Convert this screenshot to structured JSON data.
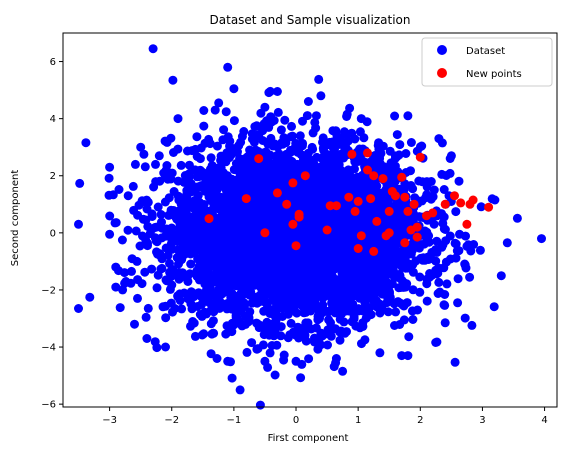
{
  "chart_data": {
    "type": "scatter",
    "title": "Dataset and Sample visualization",
    "xlabel": "First component",
    "ylabel": "Second component",
    "xlim": [
      -3.75,
      4.2
    ],
    "ylim": [
      -6.1,
      7.0
    ],
    "xticks": [
      -3,
      -2,
      -1,
      0,
      1,
      2,
      3,
      4
    ],
    "yticks": [
      -6,
      -4,
      -2,
      0,
      2,
      4,
      6
    ],
    "grid": false,
    "legend_position": "top-right",
    "series": [
      {
        "name": "Dataset",
        "color": "#0000ff",
        "distribution": "dense cloud of about 5000 points centred near (0, 0), spread roughly -3.5..4 on x and -5.5..6.5 on y",
        "points": [
          [
            -2.3,
            6.45
          ],
          [
            -1.1,
            5.8
          ],
          [
            -1.0,
            5.05
          ],
          [
            -0.3,
            4.95
          ],
          [
            0.4,
            4.8
          ],
          [
            -1.3,
            4.3
          ],
          [
            -1.9,
            4.0
          ],
          [
            1.8,
            4.1
          ],
          [
            3.95,
            -0.2
          ],
          [
            3.4,
            -0.35
          ],
          [
            3.2,
            1.15
          ],
          [
            -3.5,
            0.3
          ],
          [
            -3.5,
            -2.65
          ],
          [
            -3.0,
            2.3
          ],
          [
            -3.0,
            -0.05
          ],
          [
            -2.9,
            -1.9
          ],
          [
            -2.6,
            -3.2
          ],
          [
            -2.4,
            -3.7
          ],
          [
            -2.1,
            -4.0
          ],
          [
            -1.1,
            -4.5
          ],
          [
            -0.5,
            -4.5
          ],
          [
            0.0,
            -4.5
          ],
          [
            -0.9,
            -5.5
          ],
          [
            0.75,
            -4.85
          ],
          [
            0.65,
            -4.4
          ],
          [
            1.35,
            -4.2
          ],
          [
            1.8,
            -4.3
          ],
          [
            1.7,
            -4.3
          ],
          [
            2.4,
            -3.15
          ],
          [
            2.6,
            -2.45
          ],
          [
            2.5,
            2.7
          ],
          [
            2.3,
            3.3
          ],
          [
            1.05,
            4.0
          ],
          [
            0.2,
            4.6
          ],
          [
            -0.5,
            4.4
          ],
          [
            -0.6,
            3.4
          ],
          [
            -2.2,
            2.7
          ],
          [
            -2.7,
            1.3
          ],
          [
            -2.9,
            -1.2
          ],
          [
            -2.5,
            3.0
          ]
        ]
      },
      {
        "name": "New points",
        "color": "#ff0000",
        "points": [
          [
            -0.6,
            2.6
          ],
          [
            -0.8,
            1.2
          ],
          [
            -1.4,
            0.5
          ],
          [
            -0.5,
            0.0
          ],
          [
            -0.3,
            1.4
          ],
          [
            -0.15,
            1.0
          ],
          [
            -0.05,
            1.75
          ],
          [
            0.05,
            0.55
          ],
          [
            0.05,
            0.65
          ],
          [
            0.15,
            2.0
          ],
          [
            -0.05,
            0.3
          ],
          [
            0.0,
            -0.45
          ],
          [
            0.55,
            0.95
          ],
          [
            0.65,
            0.95
          ],
          [
            0.5,
            0.1
          ],
          [
            0.9,
            2.75
          ],
          [
            0.85,
            1.25
          ],
          [
            0.95,
            0.75
          ],
          [
            1.0,
            1.1
          ],
          [
            1.05,
            -0.1
          ],
          [
            1.0,
            -0.55
          ],
          [
            1.15,
            2.8
          ],
          [
            1.15,
            2.2
          ],
          [
            1.25,
            2.0
          ],
          [
            1.2,
            1.2
          ],
          [
            1.3,
            0.4
          ],
          [
            1.25,
            -0.65
          ],
          [
            1.4,
            1.9
          ],
          [
            1.45,
            -0.1
          ],
          [
            1.5,
            0.0
          ],
          [
            1.55,
            1.45
          ],
          [
            1.5,
            0.75
          ],
          [
            1.6,
            1.3
          ],
          [
            1.7,
            1.95
          ],
          [
            1.75,
            1.25
          ],
          [
            1.8,
            0.75
          ],
          [
            1.75,
            -0.35
          ],
          [
            1.85,
            0.1
          ],
          [
            1.9,
            1.0
          ],
          [
            1.95,
            0.2
          ],
          [
            2.0,
            2.65
          ],
          [
            2.1,
            0.6
          ],
          [
            2.2,
            0.7
          ],
          [
            2.4,
            1.0
          ],
          [
            2.55,
            1.3
          ],
          [
            2.65,
            1.05
          ],
          [
            2.8,
            1.0
          ],
          [
            2.85,
            1.15
          ],
          [
            3.1,
            0.9
          ],
          [
            2.75,
            0.3
          ],
          [
            1.95,
            -0.15
          ]
        ]
      }
    ],
    "legend": [
      {
        "label": "Dataset",
        "color": "#0000ff"
      },
      {
        "label": "New points",
        "color": "#ff0000"
      }
    ]
  }
}
